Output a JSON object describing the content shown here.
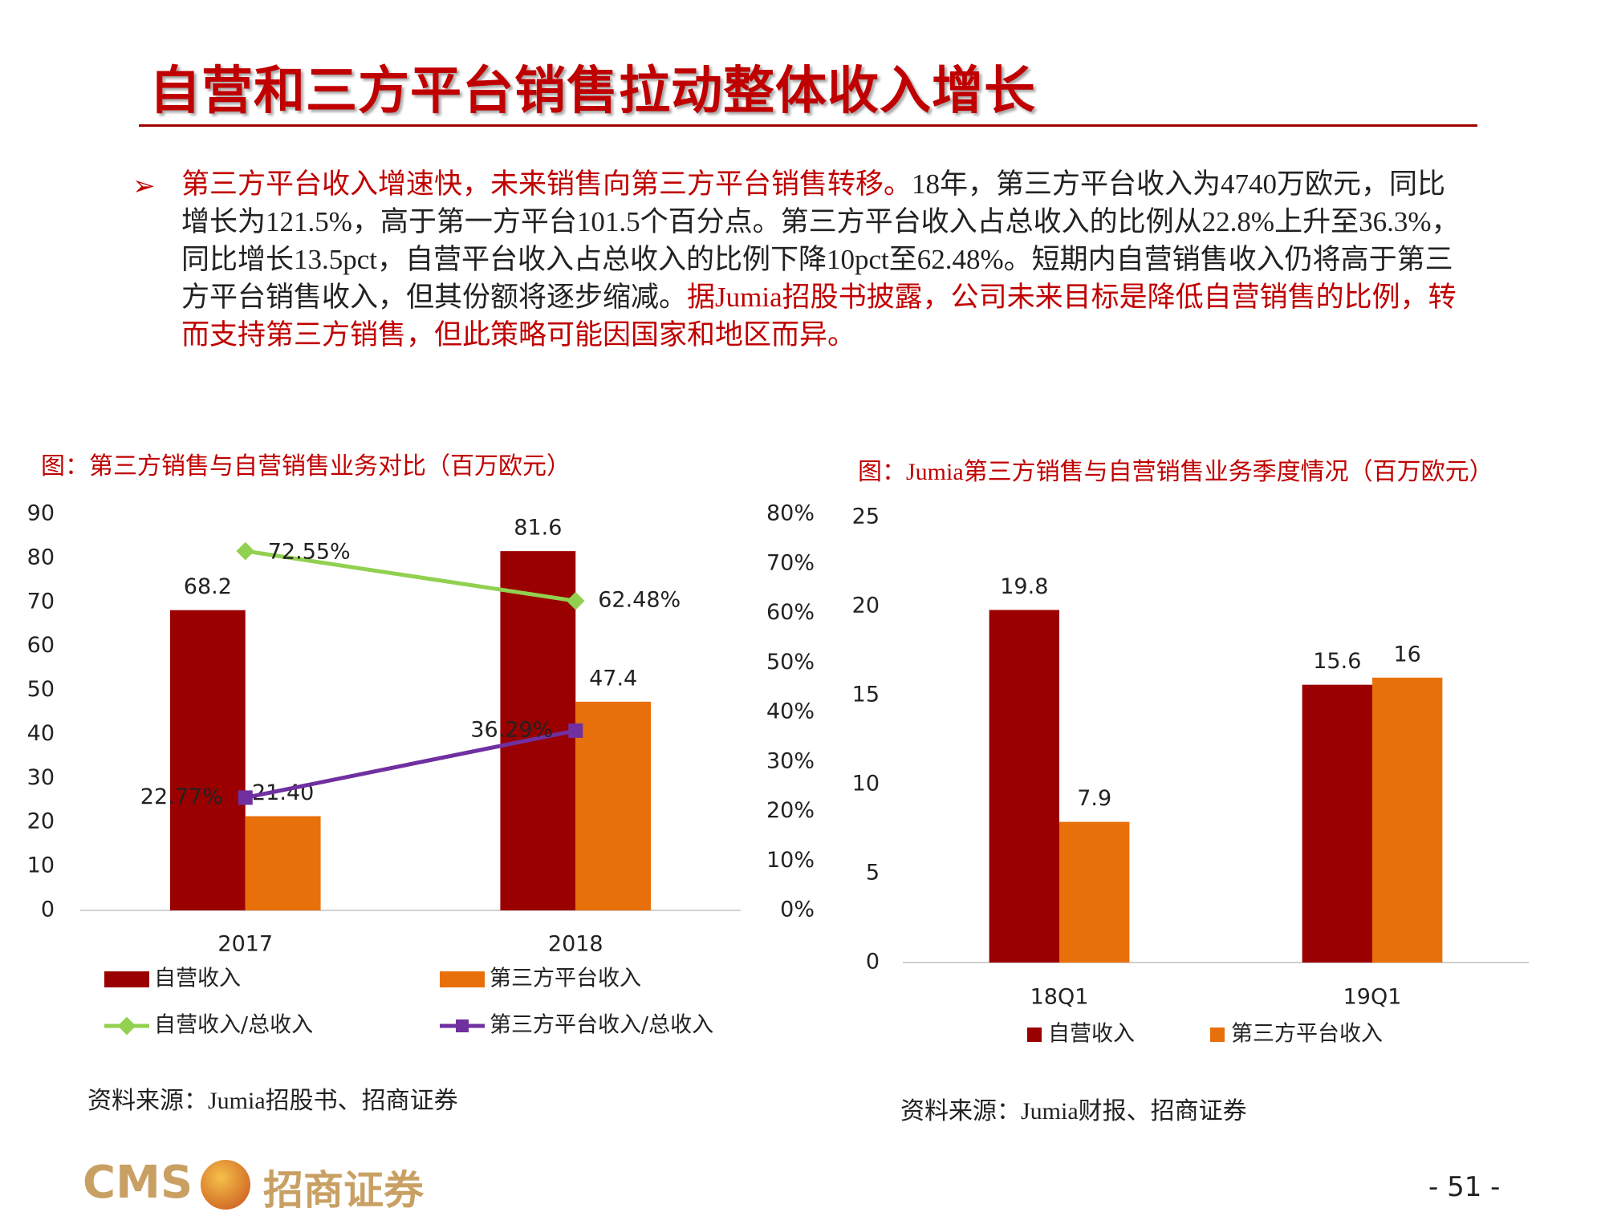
{
  "header": {
    "title": "自营和三方平台销售拉动整体收入增长"
  },
  "bullet": [
    "第三方平台收入增速快，未来销售向第三方平台销售转移。",
    "18年，第三方平台收入为4740万欧元，同比增长为121.5%，高于第一方平台101.5个百分点。第三方平台收入占总收入的比例从22.8%上升至36.3%，同比增长13.5pct，自营平台收入占总收入的比例下降10pct至62.48%。短期内自营销售收入仍将高于第三方平台销售收入，但其份额将逐步缩减。",
    "据Jumia招股书披露，公司未来目标是降低自营销售的比例，转而支持第三方销售，但此策略可能因国家和地区而异。"
  ],
  "chart_data": [
    {
      "type": "bar",
      "title": "图：第三方销售与自营销售业务对比（百万欧元）",
      "categories": [
        "2017",
        "2018"
      ],
      "series": [
        {
          "name": "自营收入",
          "color": "#9B0000",
          "values": [
            68.2,
            81.6
          ]
        },
        {
          "name": "第三方平台收入",
          "color": "#E8700A",
          "values": [
            21.4,
            47.4
          ],
          "value_labels": [
            "21.40",
            "47.4"
          ]
        },
        {
          "name": "自营收入/总收入",
          "type": "line",
          "axis": "y2",
          "color": "#92D050",
          "values": [
            72.55,
            62.48
          ],
          "value_labels": [
            "72.55%",
            "62.48%"
          ]
        },
        {
          "name": "第三方平台收入/总收入",
          "type": "line",
          "axis": "y2",
          "color": "#7030A0",
          "values": [
            22.77,
            36.29
          ],
          "value_labels": [
            "22.77%",
            "36.29%"
          ]
        }
      ],
      "ylim": [
        0,
        90
      ],
      "yticks": [
        0,
        10,
        20,
        30,
        40,
        50,
        60,
        70,
        80,
        90
      ],
      "y2lim": [
        0,
        80
      ],
      "y2ticks": [
        {
          "value": 0,
          "label": "0%"
        },
        {
          "value": 10,
          "label": "10%"
        },
        {
          "value": 20,
          "label": "20%"
        },
        {
          "value": 30,
          "label": "30%"
        },
        {
          "value": 40,
          "label": "40%"
        },
        {
          "value": 50,
          "label": "50%"
        },
        {
          "value": 60,
          "label": "60%"
        },
        {
          "value": 70,
          "label": "70%"
        },
        {
          "value": 80,
          "label": "80%"
        }
      ],
      "source": "资料来源：Jumia招股书、招商证券"
    },
    {
      "type": "bar",
      "title": "图：Jumia第三方销售与自营销售业务季度情况（百万欧元）",
      "categories": [
        "18Q1",
        "19Q1"
      ],
      "series": [
        {
          "name": "自营收入",
          "color": "#9B0000",
          "values": [
            19.8,
            15.6
          ]
        },
        {
          "name": "第三方平台收入",
          "color": "#E8700A",
          "values": [
            7.9,
            16
          ]
        }
      ],
      "ylim": [
        0,
        25
      ],
      "yticks": [
        0,
        5,
        10,
        15,
        20,
        25
      ],
      "source": "资料来源：Jumia财报、招商证券"
    }
  ],
  "footer": {
    "logo": "CMS",
    "company": "招商证券",
    "page": "- 51 -"
  }
}
